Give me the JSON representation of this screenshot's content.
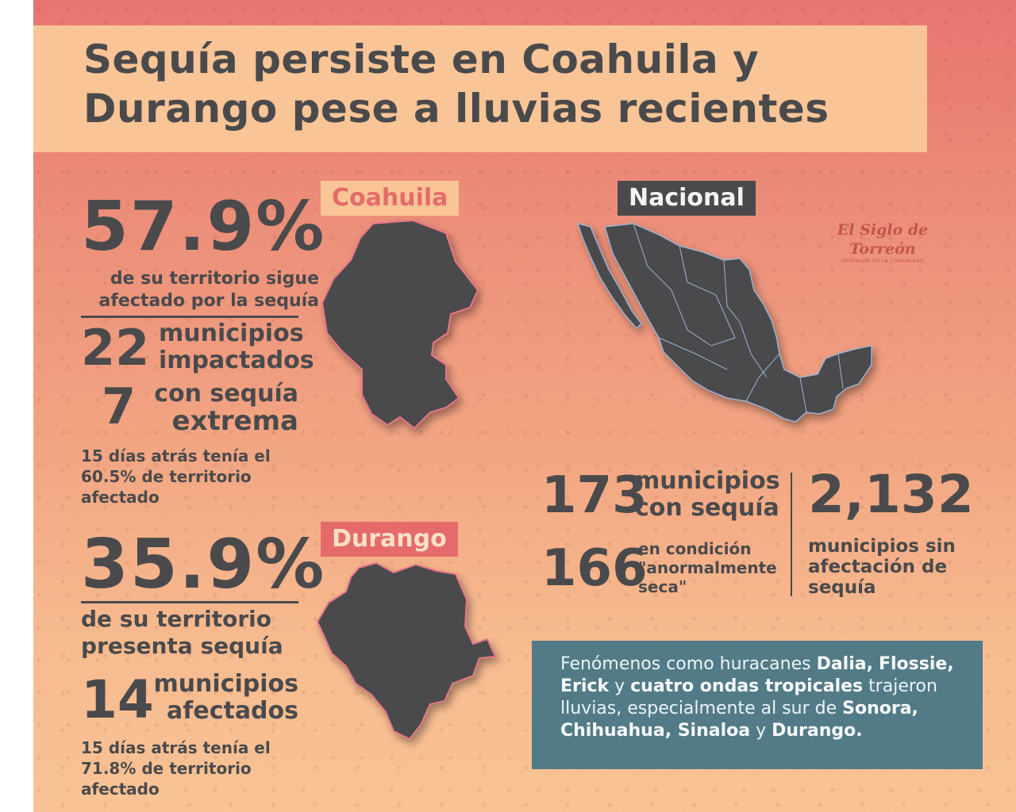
{
  "title": "Sequía persiste en Coahuila y Durango pese a lluvias recientes",
  "tags": {
    "coahuila": "Coahuila",
    "nacional": "Nacional",
    "durango": "Durango"
  },
  "coahuila": {
    "percent": "57.9%",
    "percent_desc_1": "de su territorio sigue",
    "percent_desc_2": "afectado por la sequía",
    "num1": "22",
    "num1_desc_1": "municipios",
    "num1_desc_2": "impactados",
    "num2": "7",
    "num2_desc_1": "con sequía",
    "num2_desc_2": "extrema",
    "note": "15 días atrás tenía el 60.5% de territorio afectado"
  },
  "durango": {
    "percent": "35.9%",
    "percent_desc_1": "de su territorio",
    "percent_desc_2": "presenta sequía",
    "num": "14",
    "num_desc_1": "municipios",
    "num_desc_2": "afectados",
    "note": "15 días atrás tenía el 71.8% de territorio afectado"
  },
  "nacional": {
    "num1": "173",
    "num1_desc_1": "municipios",
    "num1_desc_2": "con sequía",
    "num2": "166",
    "num2_desc_1": "en condición",
    "num2_desc_2": "\"anormalmente",
    "num2_desc_3": "seca\"",
    "num3": "2,132",
    "num3_desc_1": "municipios sin",
    "num3_desc_2": "afectación de",
    "num3_desc_3": "sequía"
  },
  "info": {
    "t1": "Fenómenos como huracanes ",
    "h1": "Dalia,",
    "h2": "Flossie, Erick",
    "t2": " y ",
    "h3": "cuatro ondas tropicales",
    "t3": " trajeron lluvias, especialmente al sur de ",
    "h4": "Sonora, Chihuahua, Sinaloa",
    "t4": " y ",
    "h5": "Durango."
  },
  "logo": {
    "name": "El Siglo de Torreón",
    "tagline": "DEFENSOR DE LA COMUNIDAD"
  },
  "colors": {
    "accent_red": "#e56b6b",
    "peach": "#f9c496",
    "dark": "#4a4a4c",
    "info_bg": "#527b87"
  }
}
